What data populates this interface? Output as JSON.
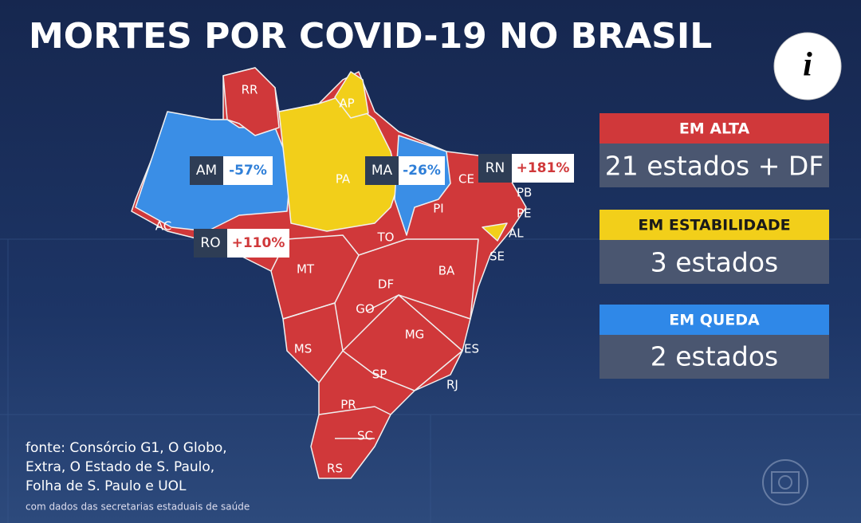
{
  "title": "MORTES POR COVID-19 NO BRASIL",
  "info_icon": "i",
  "states": [
    "RR",
    "AP",
    "AM",
    "PA",
    "MA",
    "CE",
    "RN",
    "PB",
    "PE",
    "AL",
    "SE",
    "PI",
    "AC",
    "RO",
    "TO",
    "MT",
    "BA",
    "DF",
    "GO",
    "MG",
    "ES",
    "MS",
    "SP",
    "RJ",
    "PR",
    "SC",
    "RS"
  ],
  "callouts": [
    {
      "state": "AM",
      "change": "-57%"
    },
    {
      "state": "MA",
      "change": "-26%"
    },
    {
      "state": "RN",
      "change": "+181%"
    },
    {
      "state": "RO",
      "change": "+110%"
    }
  ],
  "legend": [
    {
      "label": "EM ALTA",
      "count": "21 estados + DF"
    },
    {
      "label": "EM ESTABILIDADE",
      "count": "3 estados"
    },
    {
      "label": "EM QUEDA",
      "count": "2 estados"
    }
  ],
  "source": [
    "fonte: Consórcio G1, O Globo,",
    "Extra, O Estado de S. Paulo,",
    "Folha de S. Paulo e UOL",
    "com dados das secretarias estaduais de saúde"
  ]
}
